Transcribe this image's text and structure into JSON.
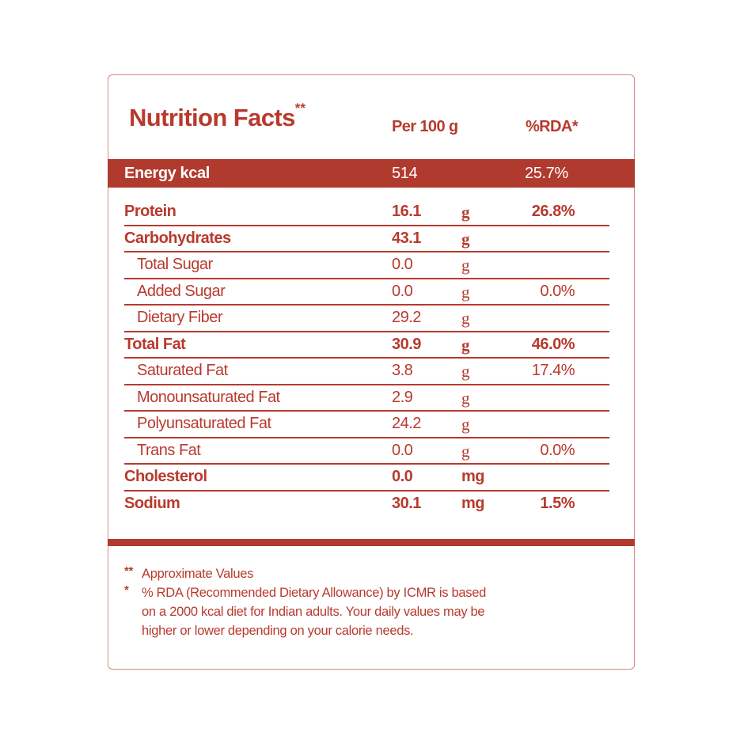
{
  "header": {
    "title": "Nutrition Facts",
    "title_marker": "**",
    "col_per": "Per 100 g",
    "col_rda": "%RDA*"
  },
  "energy": {
    "label": "Energy kcal",
    "value": "514",
    "rda": "25.7%"
  },
  "rows": [
    {
      "label": "Protein",
      "value": "16.1",
      "unit": "g",
      "rda": "26.8%",
      "level": "main"
    },
    {
      "label": "Carbohydrates",
      "value": "43.1",
      "unit": "g",
      "rda": "",
      "level": "main"
    },
    {
      "label": "Total Sugar",
      "value": "0.0",
      "unit": "g",
      "rda": "",
      "level": "sub"
    },
    {
      "label": "Added Sugar",
      "value": "0.0",
      "unit": "g",
      "rda": "0.0%",
      "level": "sub"
    },
    {
      "label": "Dietary Fiber",
      "value": "29.2",
      "unit": "g",
      "rda": "",
      "level": "sub"
    },
    {
      "label": "Total Fat",
      "value": "30.9",
      "unit": "g",
      "rda": "46.0%",
      "level": "main"
    },
    {
      "label": "Saturated Fat",
      "value": "3.8",
      "unit": "g",
      "rda": "17.4%",
      "level": "sub"
    },
    {
      "label": "Monounsaturated Fat",
      "value": "2.9",
      "unit": "g",
      "rda": "",
      "level": "sub"
    },
    {
      "label": "Polyunsaturated Fat",
      "value": "24.2",
      "unit": "g",
      "rda": "",
      "level": "sub"
    },
    {
      "label": "Trans Fat",
      "value": "0.0",
      "unit": "g",
      "rda": "0.0%",
      "level": "sub"
    },
    {
      "label": "Cholesterol",
      "value": "0.0",
      "unit": "mg",
      "rda": "",
      "level": "main"
    },
    {
      "label": "Sodium",
      "value": "30.1",
      "unit": "mg",
      "rda": "1.5%",
      "level": "main"
    }
  ],
  "footnotes": [
    {
      "marker": "**",
      "lines": [
        "Approximate Values"
      ]
    },
    {
      "marker": "*",
      "lines": [
        "% RDA (Recommended Dietary Allowance) by ICMR is based",
        "on a 2000 kcal diet for Indian adults. Your daily values may be",
        "higher or lower depending on your calorie needs."
      ]
    }
  ],
  "colors": {
    "brand_red": "#b13a2f",
    "text_red": "#b83a2e",
    "border": "#d98a82",
    "band_text": "#ffffff"
  }
}
